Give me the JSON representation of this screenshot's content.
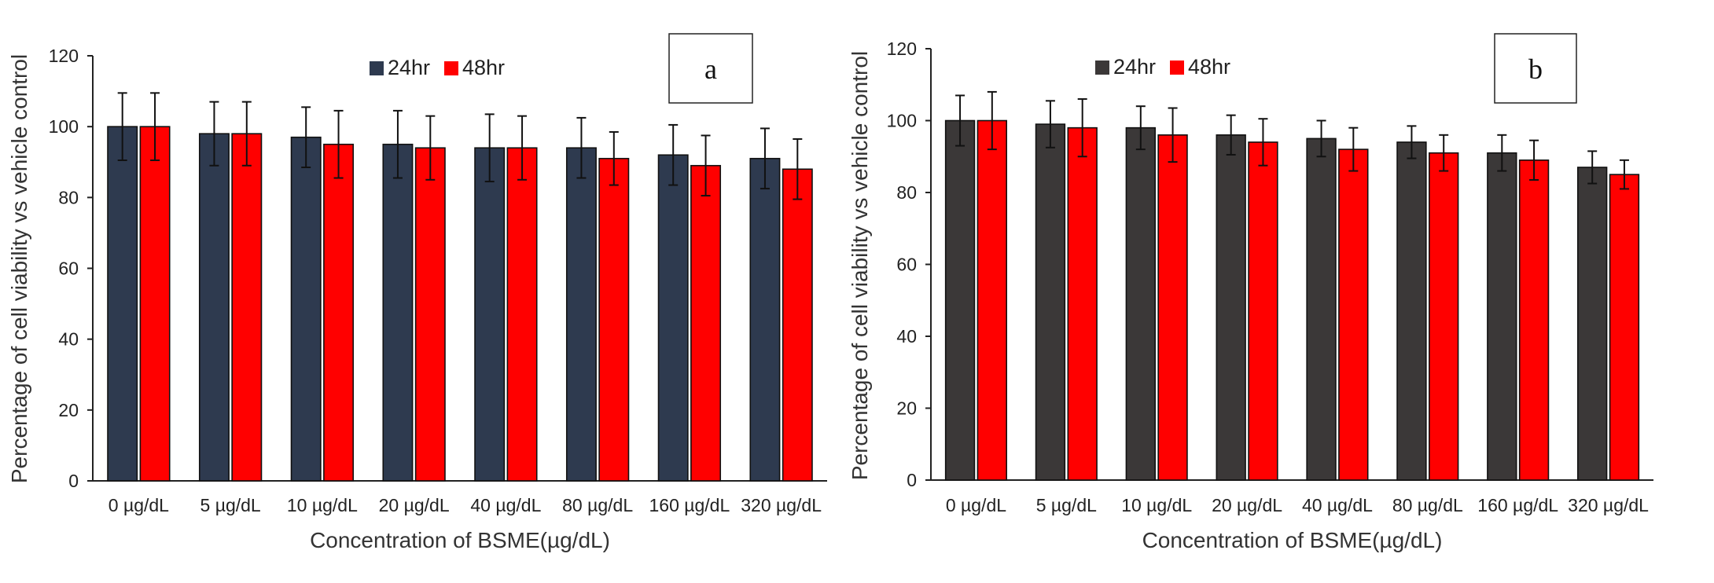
{
  "chart_data": [
    {
      "type": "bar",
      "panel_label": "a",
      "categories": [
        "0 µg/dL",
        "5 µg/dL",
        "10 µg/dL",
        "20 µg/dL",
        "40 µg/dL",
        "80 µg/dL",
        "160 µg/dL",
        "320 µg/dL"
      ],
      "series": [
        {
          "name": "24hr",
          "color": "#2e3a4f",
          "values": [
            100,
            98,
            97,
            95,
            94,
            94,
            92,
            91
          ],
          "errors": [
            9.5,
            9,
            8.5,
            9.5,
            9.5,
            8.5,
            8.5,
            8.5
          ]
        },
        {
          "name": "48hr",
          "color": "#ff0000",
          "values": [
            100,
            98,
            95,
            94,
            94,
            91,
            89,
            88
          ],
          "errors": [
            9.5,
            9,
            9.5,
            9,
            9,
            7.5,
            8.5,
            8.5
          ]
        }
      ],
      "ylabel": "Percentage of cell viability vs vehicle control",
      "xlabel": "Concentration of BSME(µg/dL)",
      "ylim": [
        0,
        120
      ],
      "yticks": [
        0,
        20,
        40,
        60,
        80,
        100,
        120
      ],
      "legend": "top-center",
      "grid": false
    },
    {
      "type": "bar",
      "panel_label": "b",
      "categories": [
        "0 µg/dL",
        "5 µg/dL",
        "10 µg/dL",
        "20 µg/dL",
        "40 µg/dL",
        "80 µg/dL",
        "160 µg/dL",
        "320 µg/dL"
      ],
      "series": [
        {
          "name": "24hr",
          "color": "#3b3838",
          "values": [
            100,
            99,
            98,
            96,
            95,
            94,
            91,
            87
          ],
          "errors": [
            7,
            6.5,
            6,
            5.5,
            5,
            4.5,
            5,
            4.5
          ]
        },
        {
          "name": "48hr",
          "color": "#ff0000",
          "values": [
            100,
            98,
            96,
            94,
            92,
            91,
            89,
            85
          ],
          "errors": [
            8,
            8,
            7.5,
            6.5,
            6,
            5,
            5.5,
            4
          ]
        }
      ],
      "ylabel": "Percentage of cell viability vs vehicle control",
      "xlabel": "Concentration of BSME(µg/dL)",
      "ylim": [
        0,
        120
      ],
      "yticks": [
        0,
        20,
        40,
        60,
        80,
        100,
        120
      ],
      "legend": "top-left",
      "grid": false
    }
  ]
}
